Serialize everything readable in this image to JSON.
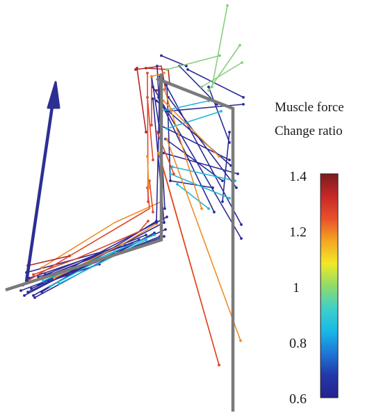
{
  "colorbar": {
    "title_line1": "Muscle force",
    "title_line2": "Change ratio",
    "min": 0.6,
    "max": 1.4,
    "tick_labels": [
      "1.4",
      "1.2",
      "1",
      "0.8",
      "0.6"
    ],
    "colormap": [
      "#24218f",
      "#2338a8",
      "#1e78d8",
      "#19b9e6",
      "#3fd0c9",
      "#8fdc6a",
      "#f2e826",
      "#f5a623",
      "#e8512a",
      "#c62828",
      "#7a1c1c"
    ]
  },
  "skeleton_color": "#7a7a7a",
  "resultant_arrow_color": "#2c2f93"
}
